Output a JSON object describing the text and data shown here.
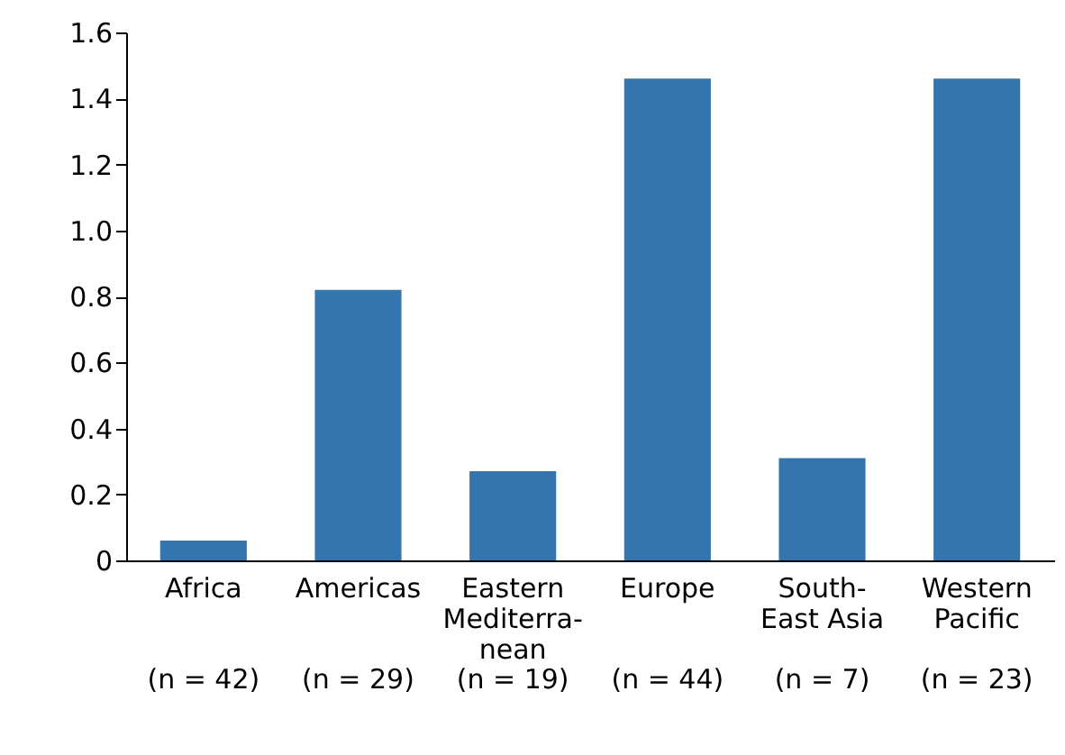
{
  "chart_data": {
    "type": "bar",
    "categories": [
      "Africa",
      "Americas",
      "Eastern\nMediterra-\nnean",
      "Europe",
      "South-\nEast Asia",
      "Western\nPacific"
    ],
    "values": [
      0.06,
      0.82,
      0.27,
      1.46,
      0.31,
      1.46
    ],
    "color": "#3575ad",
    "ylim": [
      0,
      1.6
    ],
    "yticks": [
      {
        "value": 0,
        "label": "0"
      },
      0.2,
      0.4,
      0.6,
      0.8,
      {
        "value": 1,
        "label": "1.0"
      },
      1.2,
      1.4,
      1.6
    ],
    "grid": false,
    "annotations": [
      "(n = 42)",
      "(n = 29)",
      "(n = 19)",
      "(n = 44)",
      "(n = 7)",
      "(n = 23)"
    ]
  }
}
